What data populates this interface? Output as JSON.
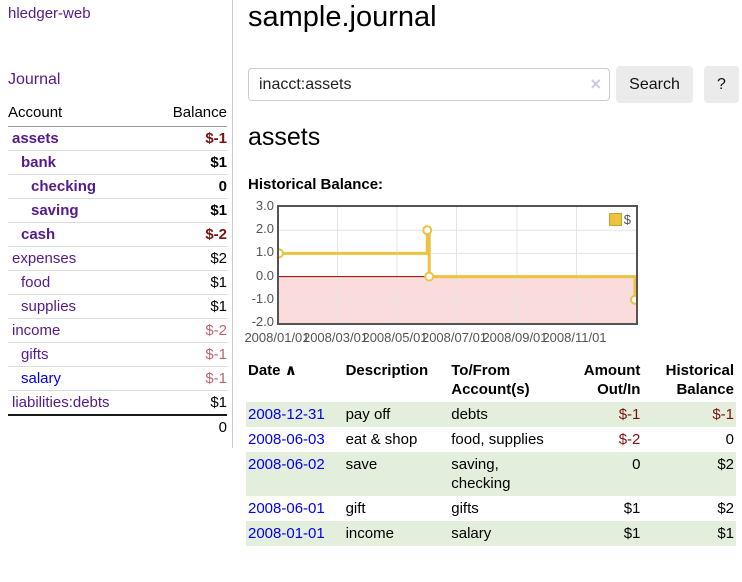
{
  "app": {
    "name": "hledger-web"
  },
  "sidebar": {
    "journal_link": "Journal",
    "accounts_table": {
      "headers": {
        "account": "Account",
        "balance": "Balance"
      },
      "rows": [
        {
          "account": "assets",
          "balance": "$-1",
          "depth": 1,
          "bold": true,
          "balance_style": "neg-strong",
          "link": "purple"
        },
        {
          "account": "bank",
          "balance": "$1",
          "depth": 2,
          "bold": true,
          "balance_style": "pos",
          "link": "purple"
        },
        {
          "account": "checking",
          "balance": "0",
          "depth": 3,
          "bold": true,
          "balance_style": "pos",
          "link": "purple"
        },
        {
          "account": "saving",
          "balance": "$1",
          "depth": 3,
          "bold": true,
          "balance_style": "pos",
          "link": "purple"
        },
        {
          "account": "cash",
          "balance": "$-2",
          "depth": 2,
          "bold": true,
          "balance_style": "neg-strong",
          "link": "purple"
        },
        {
          "account": "expenses",
          "balance": "$2",
          "depth": 1,
          "bold": false,
          "balance_style": "pos",
          "link": "purple"
        },
        {
          "account": "food",
          "balance": "$1",
          "depth": 2,
          "bold": false,
          "balance_style": "pos",
          "link": "purple"
        },
        {
          "account": "supplies",
          "balance": "$1",
          "depth": 2,
          "bold": false,
          "balance_style": "pos",
          "link": "purple"
        },
        {
          "account": "income",
          "balance": "$-2",
          "depth": 1,
          "bold": false,
          "balance_style": "neg-soft",
          "link": "purple"
        },
        {
          "account": "gifts",
          "balance": "$-1",
          "depth": 2,
          "bold": false,
          "balance_style": "neg-soft",
          "link": "purple"
        },
        {
          "account": "salary",
          "balance": "$-1",
          "depth": 2,
          "bold": false,
          "balance_style": "neg-soft",
          "link": "blue"
        },
        {
          "account": "liabilities:debts",
          "balance": "$1",
          "depth": 1,
          "bold": false,
          "balance_style": "pos",
          "link": "purple"
        }
      ],
      "total": "0"
    }
  },
  "header": {
    "title": "sample.journal"
  },
  "search": {
    "value": "inacct:assets",
    "clear_icon": "×",
    "search_button": "Search",
    "help_button": "?"
  },
  "main": {
    "account_heading": "assets",
    "chart_label": "Historical Balance:"
  },
  "chart_data": {
    "type": "line",
    "title": "Historical Balance",
    "style": "steps",
    "x_unit": "days since 2008-01-01",
    "xlim": [
      0,
      366
    ],
    "ylim": [
      -2,
      3
    ],
    "y_ticks": [
      3,
      2,
      1,
      0,
      -1,
      -2
    ],
    "y_tick_labels": [
      "3.0",
      "2.0",
      "1.0",
      "0.0",
      "-1.0",
      "-2.0"
    ],
    "x_ticks": [
      0,
      60,
      121,
      182,
      244,
      305
    ],
    "x_tick_labels": [
      "2008/01/01",
      "2008/03/01",
      "2008/05/01",
      "2008/07/01",
      "2008/09/01",
      "2008/11/01"
    ],
    "series": [
      {
        "name": "$",
        "color": "#edc240",
        "points": [
          {
            "date": "2008-01-01",
            "x": 0,
            "y": 1
          },
          {
            "date": "2008-06-01",
            "x": 152,
            "y": 2
          },
          {
            "date": "2008-06-03",
            "x": 154,
            "y": 0
          },
          {
            "date": "2008-12-31",
            "x": 365,
            "y": -1
          }
        ]
      }
    ],
    "legend": {
      "position": "top-right",
      "entries": [
        "$"
      ]
    },
    "grid": true,
    "negative_region_color": "#fadcdc",
    "zero_line_color": "#8b0000",
    "gridline_color": "#e4e4e4"
  },
  "register": {
    "headers": {
      "date": "Date",
      "sort_icon": "∧",
      "description": "Description",
      "accounts": "To/From Account(s)",
      "amount": "Amount Out/In",
      "balance": "Historical Balance"
    },
    "rows": [
      {
        "date": "2008-12-31",
        "description": "pay off",
        "accounts": "debts",
        "amount": "$-1",
        "balance": "$-1",
        "amount_neg": true,
        "balance_neg": true
      },
      {
        "date": "2008-06-03",
        "description": "eat & shop",
        "accounts": "food, supplies",
        "amount": "$-2",
        "balance": "0",
        "amount_neg": true,
        "balance_neg": false
      },
      {
        "date": "2008-06-02",
        "description": "save",
        "accounts": "saving, checking",
        "amount": "0",
        "balance": "$2",
        "amount_neg": false,
        "balance_neg": false
      },
      {
        "date": "2008-06-01",
        "description": "gift",
        "accounts": "gifts",
        "amount": "$1",
        "balance": "$2",
        "amount_neg": false,
        "balance_neg": false
      },
      {
        "date": "2008-01-01",
        "description": "income",
        "accounts": "salary",
        "amount": "$1",
        "balance": "$1",
        "amount_neg": false,
        "balance_neg": false
      }
    ]
  },
  "colors": {
    "link_visited": "#551a8b",
    "link": "#0000ee",
    "negative_strong": "#7f1010",
    "negative_soft": "#bb6670",
    "row_green": "#e3eedd",
    "series_gold": "#edc240"
  }
}
